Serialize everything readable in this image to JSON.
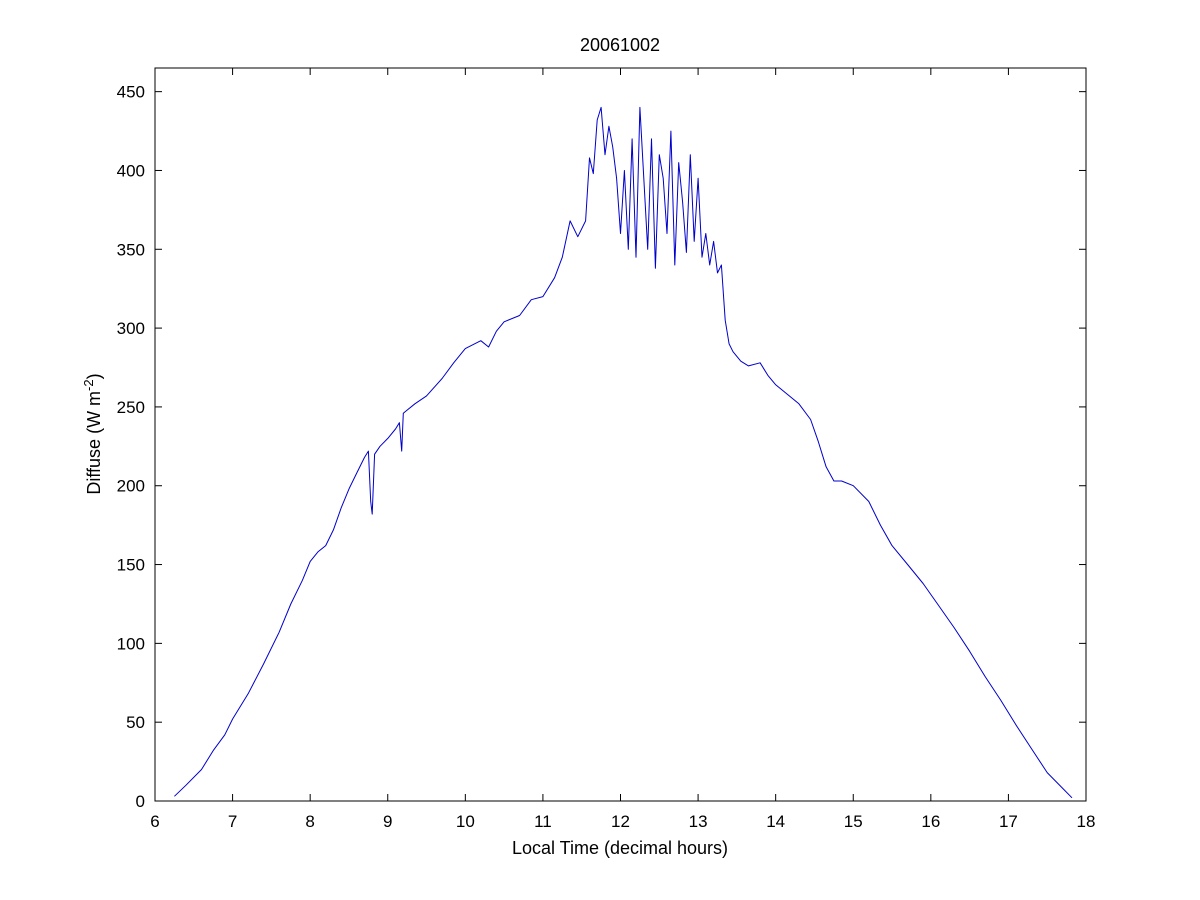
{
  "chart_data": {
    "type": "line",
    "title": "20061002",
    "xlabel": "Local Time (decimal hours)",
    "ylabel": {
      "base": "Diffuse (W m",
      "superscript": "-2",
      "close": ")"
    },
    "xlim": [
      6,
      18
    ],
    "ylim": [
      0,
      465
    ],
    "xticks": [
      6,
      7,
      8,
      9,
      10,
      11,
      12,
      13,
      14,
      15,
      16,
      17,
      18
    ],
    "yticks": [
      0,
      50,
      100,
      150,
      200,
      250,
      300,
      350,
      400,
      450
    ],
    "grid": false,
    "legend": "none",
    "line_color": "#0000cc",
    "series": [
      {
        "x": [
          6.25,
          6.4,
          6.6,
          6.75,
          6.9,
          7.0,
          7.2,
          7.4,
          7.6,
          7.75,
          7.9,
          8.0,
          8.1,
          8.2,
          8.3,
          8.4,
          8.5,
          8.6,
          8.7,
          8.75,
          8.78,
          8.8,
          8.83,
          8.9,
          9.0,
          9.1,
          9.15,
          9.18,
          9.2,
          9.25,
          9.35,
          9.5,
          9.7,
          9.85,
          10.0,
          10.2,
          10.3,
          10.4,
          10.5,
          10.7,
          10.85,
          11.0,
          11.15,
          11.25,
          11.35,
          11.45,
          11.55,
          11.6,
          11.65,
          11.7,
          11.75,
          11.8,
          11.85,
          11.9,
          11.95,
          12.0,
          12.05,
          12.1,
          12.15,
          12.2,
          12.25,
          12.3,
          12.35,
          12.4,
          12.45,
          12.5,
          12.55,
          12.6,
          12.65,
          12.7,
          12.75,
          12.8,
          12.85,
          12.9,
          12.95,
          13.0,
          13.05,
          13.1,
          13.15,
          13.2,
          13.25,
          13.3,
          13.35,
          13.4,
          13.45,
          13.55,
          13.65,
          13.8,
          13.9,
          14.0,
          14.15,
          14.3,
          14.45,
          14.55,
          14.65,
          14.75,
          14.85,
          15.0,
          15.2,
          15.35,
          15.5,
          15.7,
          15.9,
          16.1,
          16.3,
          16.5,
          16.7,
          16.9,
          17.1,
          17.3,
          17.5,
          17.7,
          17.82
        ],
        "y": [
          3,
          10,
          20,
          32,
          42,
          52,
          68,
          87,
          107,
          125,
          140,
          152,
          158,
          162,
          172,
          186,
          198,
          208,
          218,
          222,
          190,
          182,
          220,
          225,
          230,
          236,
          240,
          222,
          246,
          248,
          252,
          257,
          268,
          278,
          287,
          292,
          288,
          298,
          304,
          308,
          318,
          320,
          332,
          345,
          368,
          358,
          368,
          408,
          398,
          432,
          440,
          410,
          428,
          415,
          395,
          360,
          400,
          350,
          420,
          345,
          440,
          395,
          350,
          420,
          338,
          410,
          395,
          360,
          425,
          340,
          405,
          380,
          348,
          410,
          355,
          395,
          345,
          360,
          340,
          355,
          335,
          340,
          305,
          290,
          285,
          279,
          276,
          278,
          270,
          264,
          258,
          252,
          242,
          228,
          212,
          203,
          203,
          200,
          190,
          175,
          162,
          150,
          138,
          124,
          110,
          95,
          79,
          64,
          48,
          33,
          18,
          8,
          2
        ]
      }
    ]
  }
}
